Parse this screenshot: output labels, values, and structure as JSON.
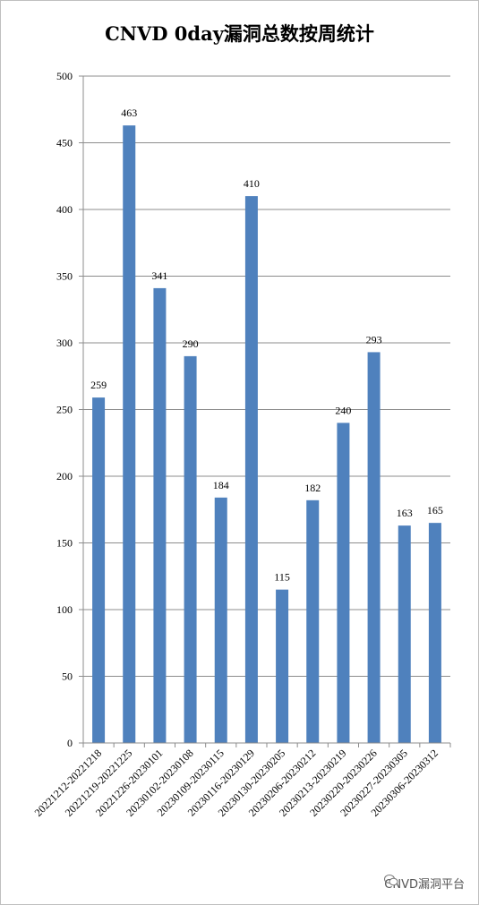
{
  "chart_data": {
    "type": "bar",
    "title": "CNVD 0day漏洞总数按周统计",
    "categories": [
      "20221212-20221218",
      "20221219-20221225",
      "20221226-20230101",
      "20230102-20230108",
      "20230109-20230115",
      "20230116-20230129",
      "20230130-20230205",
      "20230206-20230212",
      "20230213-20230219",
      "20230220-20230226",
      "20230227-20230305",
      "20230306-20230312"
    ],
    "values": [
      259,
      463,
      341,
      290,
      184,
      410,
      115,
      182,
      240,
      293,
      163,
      165
    ],
    "ylim": [
      0,
      500
    ],
    "yticks": [
      0,
      50,
      100,
      150,
      200,
      250,
      300,
      350,
      400,
      450,
      500
    ],
    "grid": true,
    "bar_color": "#4f81bd"
  },
  "watermark": {
    "text": "CNVD漏洞平台",
    "icon": "wechat-icon"
  }
}
